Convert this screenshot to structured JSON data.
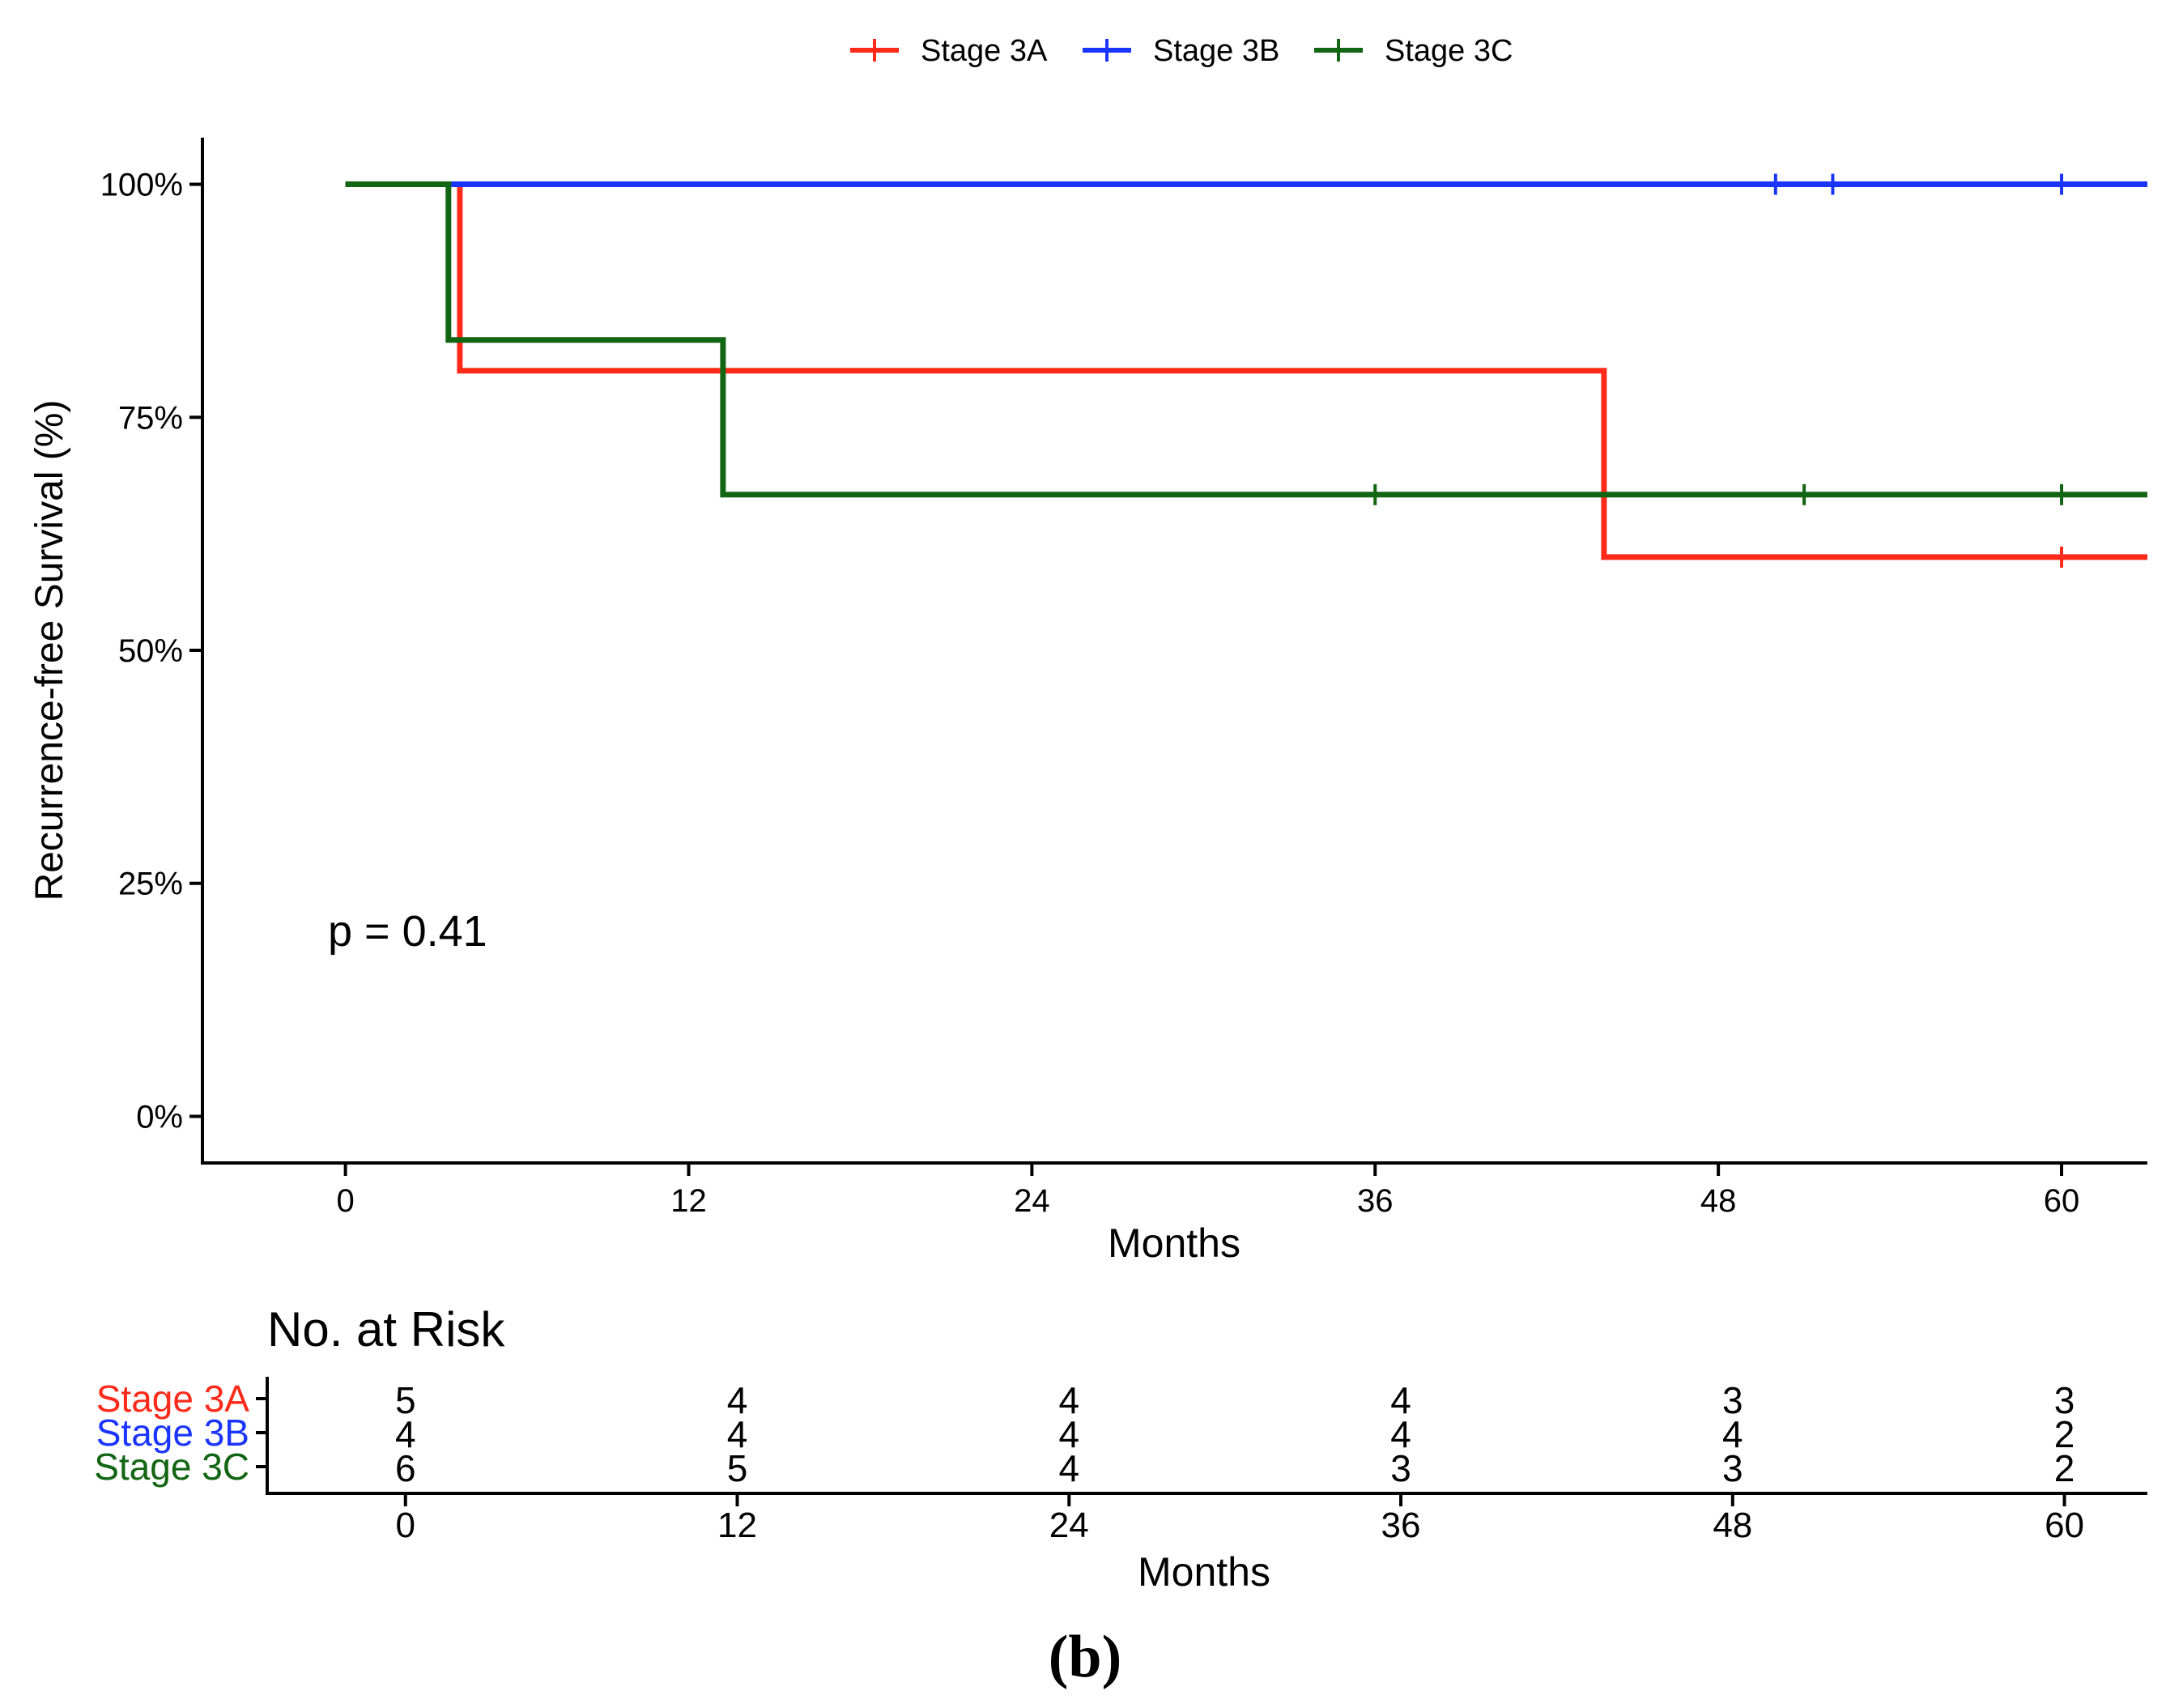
{
  "colors": {
    "stage_3a": "#ff2a1a",
    "stage_3b": "#1a35ff",
    "stage_3c": "#126512",
    "axis": "#000000",
    "text": "#000000"
  },
  "chart_data": {
    "type": "line",
    "subtype": "kaplan-meier step",
    "ylabel": "Recurrence-free Survival (%)",
    "xlabel": "Months",
    "xlim": [
      -5,
      63
    ],
    "ylim": [
      -5,
      105
    ],
    "x_ticks": [
      0,
      12,
      24,
      36,
      48,
      60
    ],
    "x_tick_labels": [
      "0",
      "12",
      "24",
      "36",
      "48",
      "60"
    ],
    "y_ticks": [
      0,
      25,
      50,
      75,
      100
    ],
    "y_tick_labels": [
      "0%",
      "25%",
      "50%",
      "75%",
      "100%"
    ],
    "legend_position": "top",
    "legend": [
      "Stage 3A",
      "Stage 3B",
      "Stage 3C"
    ],
    "annotation": "p = 0.41",
    "series": [
      {
        "name": "Stage 3A",
        "color_key": "stage_3a",
        "steps": [
          [
            0,
            100
          ],
          [
            4,
            100
          ],
          [
            4,
            80
          ],
          [
            44,
            80
          ],
          [
            44,
            60
          ],
          [
            63,
            60
          ]
        ],
        "censor_marks": [
          [
            60,
            60
          ]
        ]
      },
      {
        "name": "Stage 3B",
        "color_key": "stage_3b",
        "steps": [
          [
            0,
            100
          ],
          [
            63,
            100
          ]
        ],
        "censor_marks": [
          [
            50,
            100
          ],
          [
            52,
            100
          ],
          [
            60,
            100
          ]
        ]
      },
      {
        "name": "Stage 3C",
        "color_key": "stage_3c",
        "steps": [
          [
            0,
            100
          ],
          [
            3.6,
            100
          ],
          [
            3.6,
            83.3
          ],
          [
            13.2,
            83.3
          ],
          [
            13.2,
            66.7
          ],
          [
            63,
            66.7
          ]
        ],
        "censor_marks": [
          [
            36,
            66.7
          ],
          [
            51,
            66.7
          ],
          [
            60,
            66.7
          ]
        ]
      }
    ]
  },
  "risk_table": {
    "title": "No. at Risk",
    "xlabel": "Months",
    "time_points": [
      0,
      12,
      24,
      36,
      48,
      60
    ],
    "time_labels": [
      "0",
      "12",
      "24",
      "36",
      "48",
      "60"
    ],
    "rows": [
      {
        "label": "Stage 3A",
        "color_key": "stage_3a",
        "values": [
          "5",
          "4",
          "4",
          "4",
          "3",
          "3"
        ]
      },
      {
        "label": "Stage 3B",
        "color_key": "stage_3b",
        "values": [
          "4",
          "4",
          "4",
          "4",
          "4",
          "2"
        ]
      },
      {
        "label": "Stage 3C",
        "color_key": "stage_3c",
        "values": [
          "6",
          "5",
          "4",
          "3",
          "3",
          "2"
        ]
      }
    ]
  },
  "panel_label": "(b)"
}
